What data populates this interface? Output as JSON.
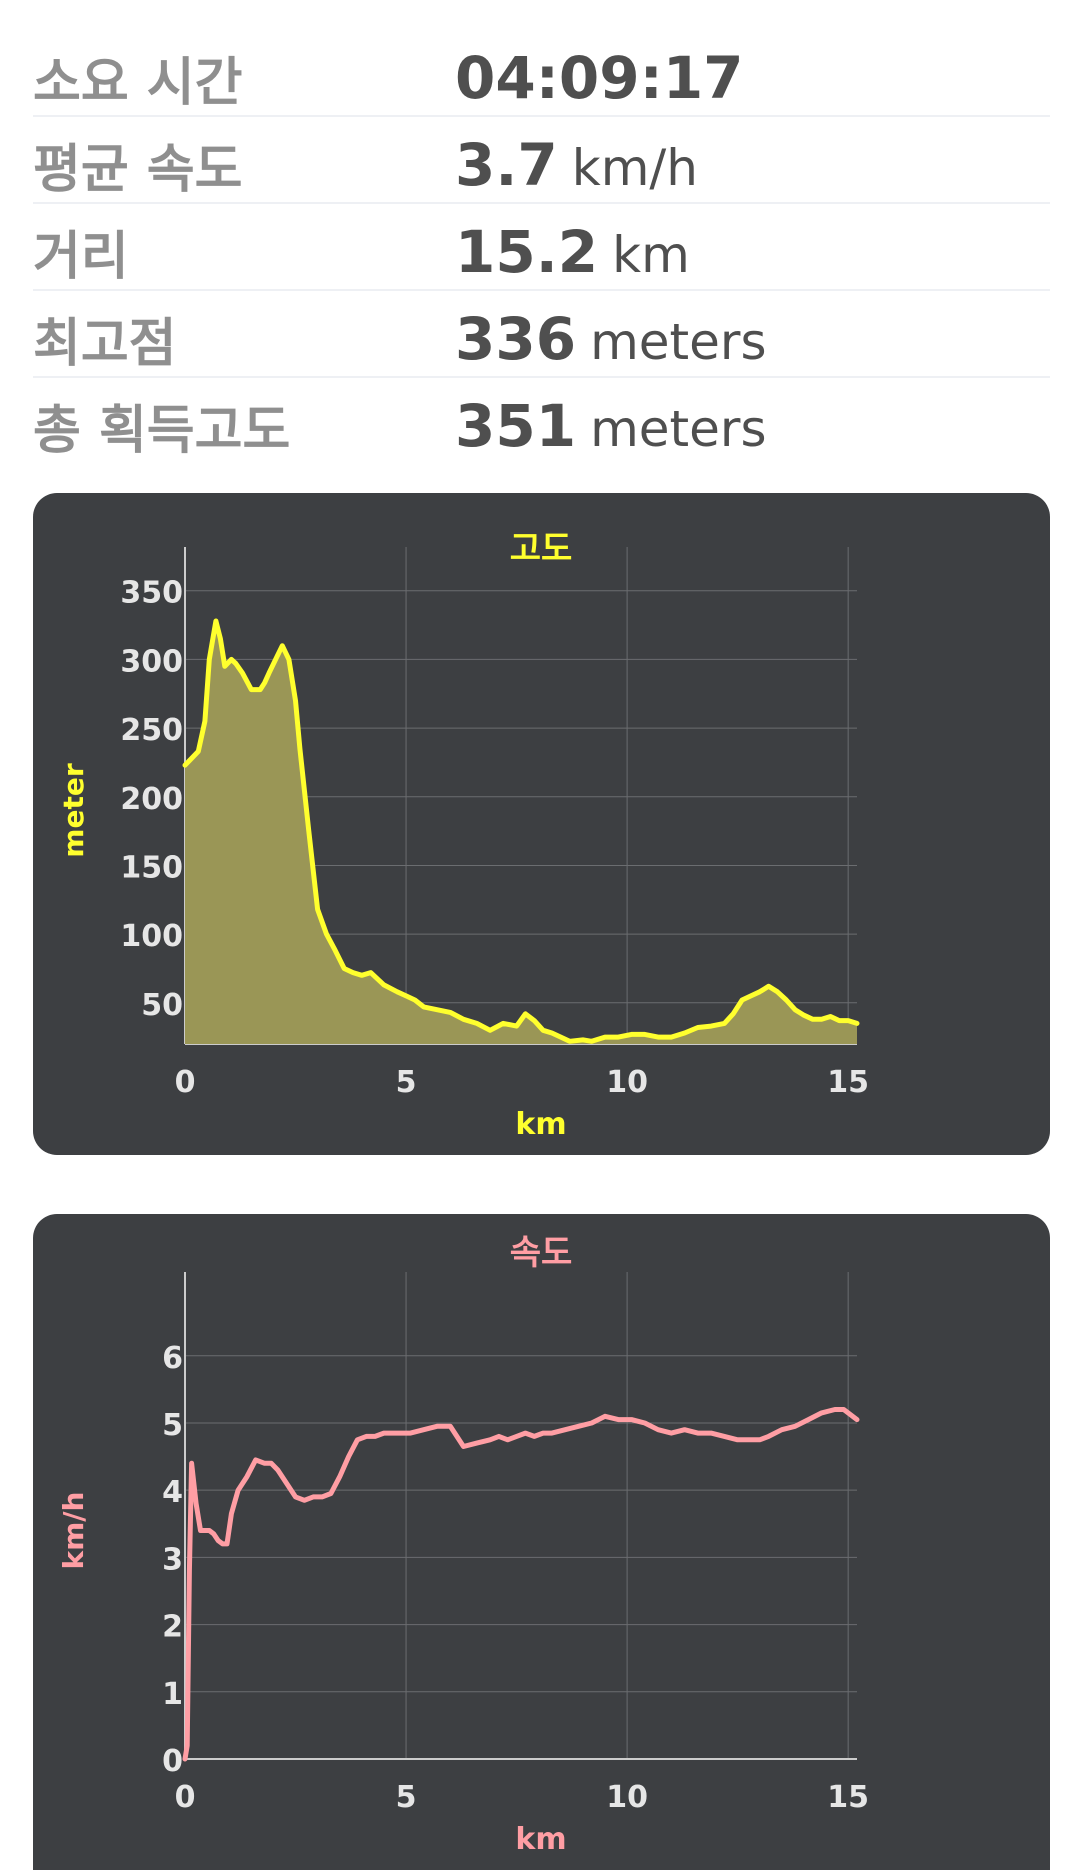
{
  "stats": [
    {
      "label": "소요 시간",
      "value": "04:09:17",
      "unit": ""
    },
    {
      "label": "평균 속도",
      "value": "3.7",
      "unit": "km/h"
    },
    {
      "label": "거리",
      "value": "15.2",
      "unit": "km"
    },
    {
      "label": "최고점",
      "value": "336",
      "unit": "meters"
    },
    {
      "label": "총 획득고도",
      "value": "351",
      "unit": "meters"
    }
  ],
  "colors": {
    "card_bg": "#3d3f42",
    "elevation_line": "#ffff2e",
    "elevation_fill": "#9a9656",
    "speed_line": "#ff9ea4",
    "grid": "#6b6d70",
    "tick_text": "#e6e6e6"
  },
  "chart_data": [
    {
      "type": "area",
      "title": "고도",
      "xlabel": "km",
      "ylabel": "meter",
      "xlim": [
        0,
        15.2
      ],
      "ylim": [
        20,
        360
      ],
      "xticks": [
        0,
        5,
        10,
        15
      ],
      "yticks": [
        50,
        100,
        150,
        200,
        250,
        300,
        350
      ],
      "grid": true,
      "x": [
        0,
        0.3,
        0.45,
        0.55,
        0.7,
        0.8,
        0.9,
        1.05,
        1.15,
        1.3,
        1.5,
        1.7,
        1.8,
        1.9,
        2.05,
        2.2,
        2.35,
        2.5,
        2.6,
        2.8,
        3.0,
        3.2,
        3.4,
        3.6,
        3.8,
        4.0,
        4.2,
        4.5,
        4.8,
        5.0,
        5.2,
        5.4,
        5.7,
        6.0,
        6.3,
        6.6,
        6.9,
        7.2,
        7.5,
        7.7,
        7.9,
        8.1,
        8.3,
        8.5,
        8.7,
        9.0,
        9.2,
        9.5,
        9.8,
        10.1,
        10.4,
        10.7,
        11.0,
        11.3,
        11.6,
        11.9,
        12.2,
        12.4,
        12.6,
        12.8,
        13.0,
        13.2,
        13.4,
        13.6,
        13.8,
        14.0,
        14.2,
        14.4,
        14.6,
        14.8,
        15.0,
        15.2
      ],
      "values": [
        223,
        233,
        255,
        300,
        328,
        315,
        295,
        300,
        297,
        290,
        278,
        278,
        283,
        290,
        300,
        310,
        300,
        270,
        235,
        175,
        118,
        100,
        88,
        75,
        72,
        70,
        72,
        63,
        58,
        55,
        52,
        47,
        45,
        43,
        38,
        35,
        30,
        35,
        33,
        42,
        37,
        30,
        28,
        25,
        22,
        23,
        22,
        25,
        25,
        27,
        27,
        25,
        25,
        28,
        32,
        33,
        35,
        42,
        52,
        55,
        58,
        62,
        58,
        52,
        45,
        41,
        38,
        38,
        40,
        37,
        37,
        35
      ]
    },
    {
      "type": "line",
      "title": "속도",
      "xlabel": "km",
      "ylabel": "km/h",
      "xlim": [
        0,
        15.2
      ],
      "ylim": [
        0,
        6.8
      ],
      "xticks": [
        0,
        5,
        10,
        15
      ],
      "yticks": [
        0,
        1,
        2,
        3,
        4,
        5,
        6
      ],
      "grid": true,
      "x": [
        0,
        0.05,
        0.1,
        0.15,
        0.25,
        0.35,
        0.45,
        0.55,
        0.65,
        0.75,
        0.85,
        0.95,
        1.05,
        1.2,
        1.4,
        1.6,
        1.8,
        1.95,
        2.1,
        2.3,
        2.5,
        2.7,
        2.9,
        3.1,
        3.3,
        3.5,
        3.7,
        3.9,
        4.1,
        4.3,
        4.5,
        4.8,
        5.1,
        5.4,
        5.7,
        6.0,
        6.3,
        6.6,
        6.9,
        7.1,
        7.3,
        7.5,
        7.7,
        7.9,
        8.1,
        8.3,
        8.6,
        8.9,
        9.2,
        9.5,
        9.8,
        10.1,
        10.4,
        10.7,
        11.0,
        11.3,
        11.6,
        11.9,
        12.2,
        12.5,
        12.8,
        13.0,
        13.2,
        13.5,
        13.8,
        14.1,
        14.4,
        14.7,
        14.9,
        15.2
      ],
      "values": [
        0,
        0.2,
        2.8,
        4.4,
        3.8,
        3.4,
        3.4,
        3.4,
        3.35,
        3.25,
        3.2,
        3.2,
        3.65,
        4.0,
        4.2,
        4.45,
        4.4,
        4.4,
        4.3,
        4.1,
        3.9,
        3.85,
        3.9,
        3.9,
        3.95,
        4.2,
        4.5,
        4.75,
        4.8,
        4.8,
        4.85,
        4.85,
        4.85,
        4.9,
        4.95,
        4.95,
        4.65,
        4.7,
        4.75,
        4.8,
        4.75,
        4.8,
        4.85,
        4.8,
        4.85,
        4.85,
        4.9,
        4.95,
        5.0,
        5.1,
        5.05,
        5.05,
        5.0,
        4.9,
        4.85,
        4.9,
        4.85,
        4.85,
        4.8,
        4.75,
        4.75,
        4.75,
        4.8,
        4.9,
        4.95,
        5.05,
        5.15,
        5.2,
        5.2,
        5.05
      ]
    }
  ]
}
